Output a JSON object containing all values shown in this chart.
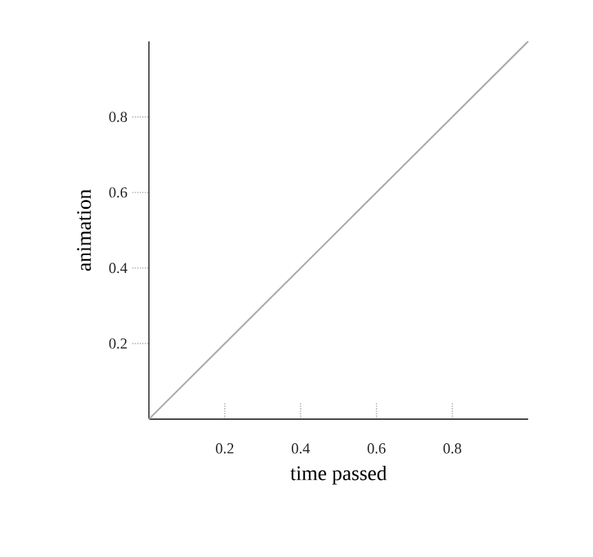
{
  "chart_data": {
    "type": "line",
    "xlabel": "time passed",
    "ylabel": "animation",
    "x": [
      0,
      1
    ],
    "series": [
      {
        "color": "#aaaaaa",
        "values": [
          0,
          1
        ]
      }
    ],
    "xlim": [
      0,
      1
    ],
    "ylim": [
      0,
      1
    ],
    "xticks": [
      0.2,
      0.4,
      0.6,
      0.8
    ],
    "yticks": [
      0.2,
      0.4,
      0.6,
      0.8
    ]
  }
}
